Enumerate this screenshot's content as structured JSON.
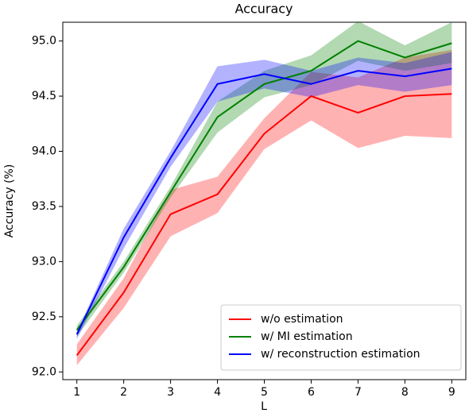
{
  "chart_data": {
    "type": "line",
    "title": "Accuracy",
    "x_label": "L",
    "y_label": "Accuracy (%)",
    "x": [
      1,
      2,
      3,
      4,
      5,
      6,
      7,
      8,
      9
    ],
    "xlim": [
      0.7,
      9.3
    ],
    "xticks": [
      1,
      2,
      3,
      4,
      5,
      6,
      7,
      8,
      9
    ],
    "ylim": [
      91.93,
      95.17
    ],
    "yticks": [
      {
        "value": 92,
        "label": "92.0"
      },
      92.5,
      {
        "value": 93,
        "label": "93.0"
      },
      93.5,
      {
        "value": 94,
        "label": "94.0"
      },
      94.5,
      {
        "value": 95,
        "label": "95.0"
      }
    ],
    "legend": "lower right",
    "band_opacity": 0.3,
    "series": [
      {
        "name": "w/o estimation",
        "color": "#ff0000",
        "values": [
          92.15,
          92.72,
          93.43,
          93.61,
          94.16,
          94.5,
          94.35,
          94.5,
          94.52
        ],
        "lower": [
          92.06,
          92.58,
          93.23,
          93.44,
          94.02,
          94.28,
          94.03,
          94.14,
          94.12
        ],
        "upper": [
          92.25,
          92.85,
          93.65,
          93.77,
          94.3,
          94.72,
          94.67,
          94.85,
          94.92
        ]
      },
      {
        "name": "w/ MI estimation",
        "color": "#008000",
        "values": [
          92.38,
          92.95,
          93.63,
          94.31,
          94.61,
          94.73,
          95.0,
          94.85,
          94.98
        ],
        "lower": [
          92.32,
          92.9,
          93.58,
          94.17,
          94.49,
          94.6,
          94.82,
          94.73,
          94.8
        ],
        "upper": [
          92.42,
          93.0,
          93.68,
          94.45,
          94.73,
          94.87,
          95.18,
          94.96,
          95.17
        ]
      },
      {
        "name": "w/ reconstruction estimation",
        "color": "#0000ff",
        "values": [
          92.34,
          93.22,
          93.94,
          94.61,
          94.7,
          94.61,
          94.73,
          94.68,
          94.75
        ],
        "lower": [
          92.3,
          93.12,
          93.86,
          94.45,
          94.57,
          94.49,
          94.6,
          94.54,
          94.6
        ],
        "upper": [
          92.36,
          93.3,
          94.0,
          94.77,
          94.83,
          94.73,
          94.85,
          94.8,
          94.9
        ]
      }
    ]
  }
}
